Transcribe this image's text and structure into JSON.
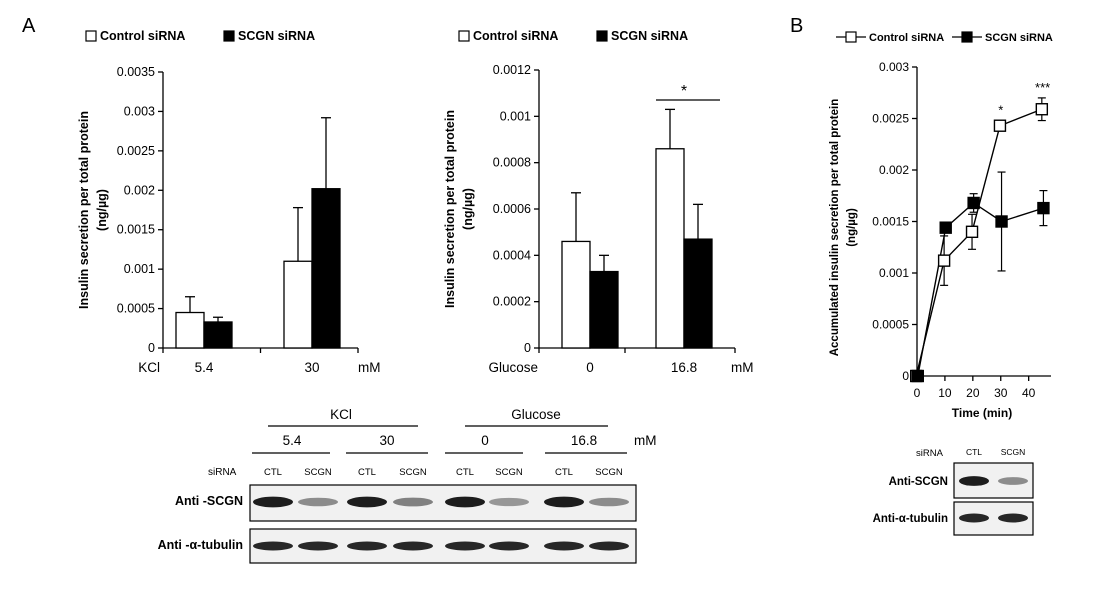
{
  "panel_labels": {
    "a": "A",
    "b": "B"
  },
  "chart_data": [
    {
      "id": "kcl",
      "type": "bar",
      "legend": [
        "Control siRNA",
        "SCGN siRNA"
      ],
      "ylabel_line1": "Insulin secretion per total protein",
      "ylabel_line2": "(ng/µg)",
      "ylim": [
        0,
        0.0035
      ],
      "yticks": [
        0,
        0.0005,
        0.001,
        0.0015,
        0.002,
        0.0025,
        0.003,
        0.0035
      ],
      "ytick_labels": [
        "0",
        "0.0005",
        "0.001",
        "0.0015",
        "0.002",
        "0.0025",
        "0.003",
        "0.0035"
      ],
      "x_prefix": "KCl",
      "x_unit": "mM",
      "categories": [
        "5.4",
        "30"
      ],
      "series": [
        {
          "name": "Control siRNA",
          "values": [
            0.00045,
            0.0011
          ],
          "errors": [
            0.0002,
            0.00068
          ]
        },
        {
          "name": "SCGN siRNA",
          "values": [
            0.00033,
            0.00202
          ],
          "errors": [
            6e-05,
            0.0009
          ]
        }
      ],
      "significance": []
    },
    {
      "id": "glucose",
      "type": "bar",
      "legend": [
        "Control siRNA",
        "SCGN siRNA"
      ],
      "ylabel_line1": "Insulin secretion per total protein",
      "ylabel_line2": "(ng/µg)",
      "ylim": [
        0,
        0.0012
      ],
      "yticks": [
        0,
        0.0002,
        0.0004,
        0.0006,
        0.0008,
        0.001,
        0.0012
      ],
      "ytick_labels": [
        "0",
        "0.0002",
        "0.0004",
        "0.0006",
        "0.0008",
        "0.001",
        "0.0012"
      ],
      "x_prefix": "Glucose",
      "x_unit": "mM",
      "categories": [
        "0",
        "16.8"
      ],
      "series": [
        {
          "name": "Control siRNA",
          "values": [
            0.00046,
            0.00086
          ],
          "errors": [
            0.00021,
            0.00017
          ]
        },
        {
          "name": "SCGN siRNA",
          "values": [
            0.00033,
            0.00047
          ],
          "errors": [
            7e-05,
            0.00015
          ]
        }
      ],
      "significance": [
        {
          "category": "16.8",
          "label": "*"
        }
      ]
    },
    {
      "id": "time",
      "type": "line",
      "legend": [
        "Control siRNA",
        "SCGN siRNA"
      ],
      "ylabel_line1": "Accumulated insulin secretion per total protein",
      "ylabel_line2": "(ng/µg)",
      "xlabel": "Time (min)",
      "x": [
        0,
        10,
        20,
        30,
        45
      ],
      "xticks": [
        0,
        10,
        20,
        30,
        40
      ],
      "xlim": [
        0,
        48
      ],
      "ylim": [
        0,
        0.003
      ],
      "yticks": [
        0,
        0.0005,
        0.001,
        0.0015,
        0.002,
        0.0025,
        0.003
      ],
      "ytick_labels": [
        "0",
        "0.0005",
        "0.001",
        "0.0015",
        "0.002",
        "0.0025",
        "0.003"
      ],
      "series": [
        {
          "name": "Control siRNA",
          "marker": "open-square",
          "values": [
            0,
            0.00112,
            0.0014,
            0.00243,
            0.00259
          ],
          "errors": [
            0,
            0.00024,
            0.00017,
            5e-05,
            0.00011
          ]
        },
        {
          "name": "SCGN siRNA",
          "marker": "filled-square",
          "values": [
            0,
            0.00144,
            0.00168,
            0.0015,
            0.00163
          ],
          "errors": [
            0,
            5e-05,
            9e-05,
            0.00048,
            0.00017
          ]
        }
      ],
      "significance": [
        {
          "x": 30,
          "label": "*"
        },
        {
          "x": 45,
          "label": "***"
        }
      ]
    }
  ],
  "blot_a": {
    "group_labels": [
      "KCl",
      "Glucose"
    ],
    "conc_labels": [
      "5.4",
      "30",
      "0",
      "16.8"
    ],
    "unit": "mM",
    "sirna_label": "siRNA",
    "lane_labels": [
      "CTL",
      "SCGN",
      "CTL",
      "SCGN",
      "CTL",
      "SCGN",
      "CTL",
      "SCGN"
    ],
    "row_labels": [
      "Anti -SCGN",
      "Anti -α-tubulin"
    ]
  },
  "blot_b": {
    "sirna_label": "siRNA",
    "lane_labels": [
      "CTL",
      "SCGN"
    ],
    "row_labels": [
      "Anti-SCGN",
      "Anti-α-tubulin"
    ]
  }
}
